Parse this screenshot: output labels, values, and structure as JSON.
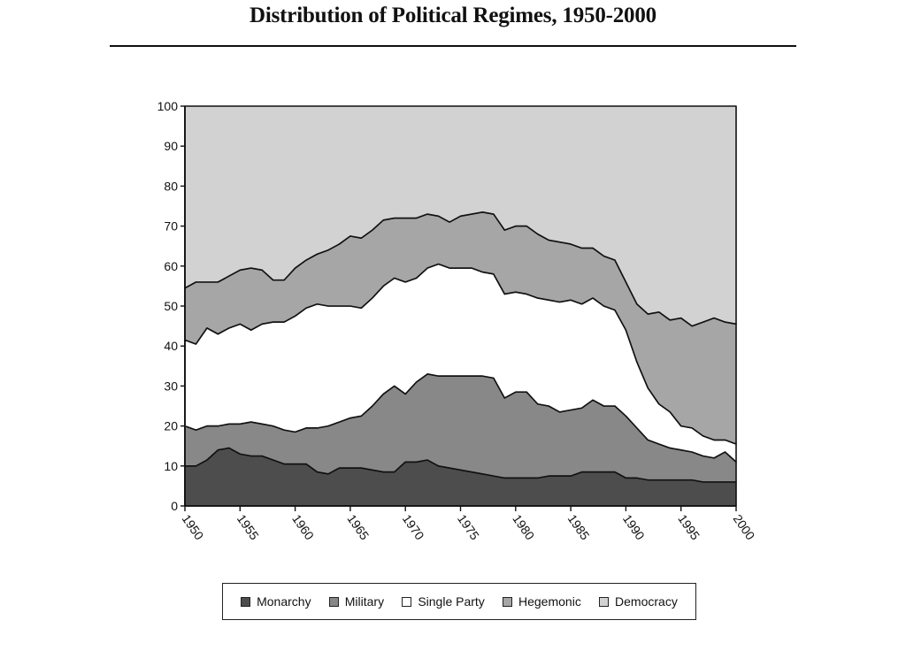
{
  "header": {
    "title": "Distribution of Political Regimes, 1950-2000"
  },
  "chart_data": {
    "type": "area",
    "stacked": true,
    "title": "Distribution of Political Regimes, 1950-2000",
    "xlabel": "",
    "ylabel": "",
    "xlim": [
      1950,
      2000
    ],
    "ylim": [
      0,
      100
    ],
    "x_ticks": [
      1950,
      1955,
      1960,
      1965,
      1970,
      1975,
      1980,
      1985,
      1990,
      1995,
      2000
    ],
    "y_ticks": [
      0,
      10,
      20,
      30,
      40,
      50,
      60,
      70,
      80,
      90,
      100
    ],
    "grid": false,
    "legend_position": "bottom",
    "x": [
      1950,
      1951,
      1952,
      1953,
      1954,
      1955,
      1956,
      1957,
      1958,
      1959,
      1960,
      1961,
      1962,
      1963,
      1964,
      1965,
      1966,
      1967,
      1968,
      1969,
      1970,
      1971,
      1972,
      1973,
      1974,
      1975,
      1976,
      1977,
      1978,
      1979,
      1980,
      1981,
      1982,
      1983,
      1984,
      1985,
      1986,
      1987,
      1988,
      1989,
      1990,
      1991,
      1992,
      1993,
      1994,
      1995,
      1996,
      1997,
      1998,
      1999,
      2000
    ],
    "series": [
      {
        "name": "Monarchy",
        "color": "#4d4d4d",
        "values": [
          10.0,
          10.0,
          11.5,
          14.0,
          14.5,
          13.0,
          12.5,
          12.5,
          11.5,
          10.5,
          10.5,
          10.5,
          8.5,
          8.0,
          9.5,
          9.5,
          9.5,
          9.0,
          8.5,
          8.5,
          11.0,
          11.0,
          11.5,
          10.0,
          9.5,
          9.0,
          8.5,
          8.0,
          7.5,
          7.0,
          7.0,
          7.0,
          7.0,
          7.5,
          7.5,
          7.5,
          8.5,
          8.5,
          8.5,
          8.5,
          7.0,
          7.0,
          6.5,
          6.5,
          6.5,
          6.5,
          6.5,
          6.0,
          6.0,
          6.0,
          6.0
        ]
      },
      {
        "name": "Military",
        "color": "#888888",
        "values": [
          10.0,
          9.0,
          8.5,
          6.0,
          6.0,
          7.5,
          8.5,
          8.0,
          8.5,
          8.5,
          8.0,
          9.0,
          11.0,
          12.0,
          11.5,
          12.5,
          13.0,
          16.0,
          19.5,
          21.5,
          17.0,
          20.0,
          21.5,
          22.5,
          23.0,
          23.5,
          24.0,
          24.5,
          24.5,
          20.0,
          21.5,
          21.5,
          18.5,
          17.5,
          16.0,
          16.5,
          16.0,
          18.0,
          16.5,
          16.5,
          15.5,
          12.5,
          10.0,
          9.0,
          8.0,
          7.5,
          7.0,
          6.5,
          6.0,
          7.5,
          5.0
        ]
      },
      {
        "name": "Single Party",
        "color": "#ffffff",
        "values": [
          21.5,
          21.5,
          24.5,
          23.0,
          24.0,
          25.0,
          23.0,
          25.0,
          26.0,
          27.0,
          29.0,
          30.0,
          31.0,
          30.0,
          29.0,
          28.0,
          27.0,
          27.0,
          27.0,
          27.0,
          28.0,
          26.0,
          26.5,
          28.0,
          27.0,
          27.0,
          27.0,
          26.0,
          26.0,
          26.0,
          25.0,
          24.5,
          26.5,
          26.5,
          27.5,
          27.5,
          26.0,
          25.5,
          25.0,
          24.0,
          21.5,
          16.5,
          13.0,
          10.0,
          9.0,
          6.0,
          6.0,
          5.0,
          4.5,
          3.0,
          4.5
        ]
      },
      {
        "name": "Hegemonic",
        "color": "#a6a6a6",
        "values": [
          13.0,
          15.5,
          11.5,
          13.0,
          13.0,
          13.5,
          15.5,
          13.5,
          10.5,
          10.5,
          12.0,
          12.0,
          12.5,
          14.0,
          15.5,
          17.5,
          17.5,
          17.0,
          16.5,
          15.0,
          16.0,
          15.0,
          13.5,
          12.0,
          11.5,
          13.0,
          13.5,
          15.0,
          15.0,
          16.0,
          16.5,
          17.0,
          16.0,
          15.0,
          15.0,
          14.0,
          14.0,
          12.5,
          12.5,
          12.5,
          12.0,
          14.5,
          18.5,
          23.0,
          23.0,
          27.0,
          25.5,
          28.5,
          30.5,
          29.5,
          30.0
        ]
      },
      {
        "name": "Democracy",
        "color": "#d2d2d2",
        "values": [
          45.5,
          44.0,
          44.0,
          44.0,
          42.5,
          41.0,
          40.5,
          41.0,
          43.5,
          43.5,
          40.5,
          38.5,
          37.0,
          36.0,
          34.5,
          32.5,
          33.0,
          31.0,
          28.5,
          28.0,
          28.0,
          28.0,
          27.0,
          27.5,
          29.0,
          27.5,
          27.0,
          26.5,
          27.0,
          31.0,
          30.0,
          30.0,
          32.0,
          33.5,
          34.0,
          34.5,
          35.5,
          35.5,
          37.5,
          38.5,
          44.0,
          49.5,
          52.0,
          51.5,
          53.5,
          53.0,
          55.0,
          54.0,
          53.0,
          54.0,
          54.5
        ]
      }
    ]
  },
  "legend": {
    "items": [
      {
        "label": "Monarchy",
        "color": "#4d4d4d"
      },
      {
        "label": "Military",
        "color": "#888888"
      },
      {
        "label": "Single Party",
        "color": "#ffffff"
      },
      {
        "label": "Hegemonic",
        "color": "#a6a6a6"
      },
      {
        "label": "Democracy",
        "color": "#d2d2d2"
      }
    ]
  }
}
